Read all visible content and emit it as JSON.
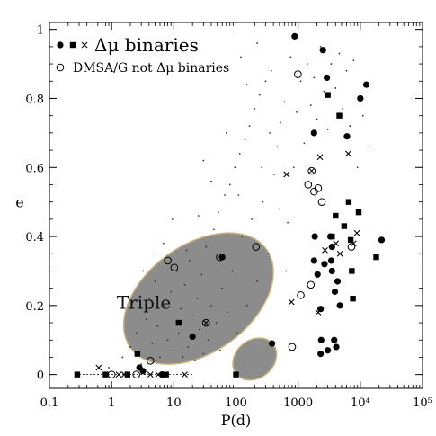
{
  "chart_data": {
    "type": "scatter",
    "x_scale": "log",
    "xlim": [
      0.1,
      100000
    ],
    "ylim": [
      -0.04,
      1.02
    ],
    "xlabel": "P(d)",
    "ylabel": "e",
    "x_ticks": [
      {
        "value": 0.1,
        "label": "0.1"
      },
      {
        "value": 1,
        "label": "1"
      },
      {
        "value": 10,
        "label": "10"
      },
      {
        "value": 100,
        "label": "100"
      },
      {
        "value": 1000,
        "label": "1000"
      },
      {
        "value": 10000,
        "label": "10⁴"
      },
      {
        "value": 100000,
        "label": "10⁵"
      }
    ],
    "y_ticks": [
      {
        "value": 0,
        "label": "0"
      },
      {
        "value": 0.2,
        "label": "0.2"
      },
      {
        "value": 0.4,
        "label": "0.4"
      },
      {
        "value": 0.6,
        "label": "0.6"
      },
      {
        "value": 0.8,
        "label": "0.8"
      },
      {
        "value": 1,
        "label": "1"
      }
    ],
    "legend": {
      "placement": "top-left",
      "entries": [
        {
          "markers": [
            "filled-circle",
            "filled-square",
            "cross"
          ],
          "label": "Δμ binaries"
        },
        {
          "markers": [
            "open-circle"
          ],
          "label": "DMSA/G not Δμ binaries"
        }
      ]
    },
    "annotations": [
      {
        "text": "Triple",
        "x": 3.3,
        "y": 0.19
      }
    ],
    "series": [
      {
        "marker": "filled-circle",
        "color": "#000000",
        "points": [
          [
            2.8,
            0.02
          ],
          [
            3.2,
            0.01
          ],
          [
            6.5,
            0.0
          ],
          [
            20,
            0.11
          ],
          [
            60,
            0.34
          ],
          [
            380,
            0.09
          ],
          [
            880,
            0.98
          ],
          [
            1800,
            0.7
          ],
          [
            1850,
            0.4
          ],
          [
            1800,
            0.33
          ],
          [
            2050,
            0.29
          ],
          [
            2300,
            0.19
          ],
          [
            2350,
            0.1
          ],
          [
            2300,
            0.06
          ],
          [
            2500,
            0.94
          ],
          [
            2650,
            0.32
          ],
          [
            2900,
            0.86
          ],
          [
            3000,
            0.07
          ],
          [
            3300,
            0.4
          ],
          [
            3500,
            0.37
          ],
          [
            3400,
            0.33
          ],
          [
            3500,
            0.3
          ],
          [
            3800,
            0.1
          ],
          [
            3900,
            0.24
          ],
          [
            4100,
            0.08
          ],
          [
            4300,
            0.27
          ],
          [
            4700,
            0.2
          ],
          [
            6100,
            0.69
          ],
          [
            10000,
            0.8
          ],
          [
            12500,
            0.84
          ],
          [
            22000,
            0.39
          ]
        ]
      },
      {
        "marker": "filled-square",
        "color": "#000000",
        "points": [
          [
            0.28,
            0.0
          ],
          [
            0.8,
            0.0
          ],
          [
            1.8,
            0.0
          ],
          [
            2.6,
            0.06
          ],
          [
            7.5,
            0.0
          ],
          [
            12,
            0.15
          ],
          [
            100,
            0.0
          ],
          [
            3000,
            0.81
          ],
          [
            3500,
            0.4
          ],
          [
            4000,
            0.46
          ],
          [
            4600,
            0.75
          ],
          [
            5500,
            0.43
          ],
          [
            6500,
            0.5
          ],
          [
            7000,
            0.39
          ],
          [
            7300,
            0.3
          ],
          [
            7600,
            0.22
          ],
          [
            9400,
            0.47
          ],
          [
            18000,
            0.34
          ]
        ]
      },
      {
        "marker": "cross",
        "color": "#000000",
        "points": [
          [
            0.62,
            0.02
          ],
          [
            1.3,
            0.0
          ],
          [
            1.6,
            0.0
          ],
          [
            4.2,
            0.0
          ],
          [
            5.6,
            0.0
          ],
          [
            15,
            0.0
          ],
          [
            650,
            0.58
          ],
          [
            780,
            0.21
          ],
          [
            2100,
            0.18
          ],
          [
            2250,
            0.63
          ],
          [
            2700,
            0.36
          ],
          [
            4050,
            0.38
          ],
          [
            4700,
            0.35
          ],
          [
            6400,
            0.64
          ],
          [
            7800,
            0.38
          ],
          [
            8800,
            0.41
          ]
        ]
      },
      {
        "marker": "open-circle",
        "color": "#000000",
        "points": [
          [
            1.0,
            0.0
          ],
          [
            2.5,
            0.0
          ],
          [
            4.2,
            0.04
          ],
          [
            8.0,
            0.33
          ],
          [
            10.2,
            0.31
          ],
          [
            55,
            0.34
          ],
          [
            210,
            0.37
          ],
          [
            800,
            0.08
          ],
          [
            990,
            0.87
          ],
          [
            1100,
            0.23
          ],
          [
            1450,
            0.55
          ],
          [
            1600,
            0.26
          ],
          [
            1800,
            0.53
          ],
          [
            2100,
            0.54
          ],
          [
            2400,
            0.5
          ],
          [
            7200,
            0.37
          ]
        ]
      },
      {
        "marker": "open-circle-cross",
        "color": "#000000",
        "points": [
          [
            33,
            0.15
          ],
          [
            1650,
            0.59
          ]
        ]
      }
    ],
    "background_dots": [
      [
        0.9,
        0.02
      ],
      [
        1.5,
        0.05
      ],
      [
        2.0,
        0.08
      ],
      [
        2.5,
        0.12
      ],
      [
        3.0,
        0.03
      ],
      [
        3.6,
        0.16
      ],
      [
        4.0,
        0.22
      ],
      [
        4.5,
        0.09
      ],
      [
        5.0,
        0.27
      ],
      [
        5.5,
        0.14
      ],
      [
        6.0,
        0.05
      ],
      [
        7.0,
        0.2
      ],
      [
        8.0,
        0.1
      ],
      [
        9.0,
        0.24
      ],
      [
        10,
        0.07
      ],
      [
        11,
        0.3
      ],
      [
        12,
        0.12
      ],
      [
        13,
        0.19
      ],
      [
        14,
        0.05
      ],
      [
        15,
        0.26
      ],
      [
        17,
        0.08
      ],
      [
        18,
        0.33
      ],
      [
        20,
        0.17
      ],
      [
        22,
        0.04
      ],
      [
        24,
        0.22
      ],
      [
        26,
        0.13
      ],
      [
        28,
        0.29
      ],
      [
        30,
        0.06
      ],
      [
        33,
        0.37
      ],
      [
        36,
        0.1
      ],
      [
        40,
        0.2
      ],
      [
        44,
        0.42
      ],
      [
        48,
        0.15
      ],
      [
        52,
        0.47
      ],
      [
        56,
        0.07
      ],
      [
        60,
        0.25
      ],
      [
        66,
        0.52
      ],
      [
        72,
        0.18
      ],
      [
        80,
        0.55
      ],
      [
        88,
        0.3
      ],
      [
        96,
        0.6
      ],
      [
        105,
        0.12
      ],
      [
        115,
        0.64
      ],
      [
        125,
        0.4
      ],
      [
        140,
        0.68
      ],
      [
        150,
        0.2
      ],
      [
        165,
        0.72
      ],
      [
        180,
        0.45
      ],
      [
        200,
        0.77
      ],
      [
        220,
        0.27
      ],
      [
        240,
        0.81
      ],
      [
        270,
        0.5
      ],
      [
        300,
        0.85
      ],
      [
        330,
        0.35
      ],
      [
        370,
        0.88
      ],
      [
        410,
        0.58
      ],
      [
        460,
        0.66
      ],
      [
        520,
        0.73
      ],
      [
        600,
        0.79
      ],
      [
        680,
        0.44
      ],
      [
        760,
        0.92
      ],
      [
        850,
        0.6
      ],
      [
        950,
        0.76
      ],
      [
        1100,
        0.85
      ],
      [
        1250,
        0.67
      ],
      [
        1400,
        0.9
      ],
      [
        1600,
        0.78
      ],
      [
        1800,
        0.86
      ],
      [
        2000,
        0.74
      ],
      [
        2300,
        0.95
      ],
      [
        2600,
        0.82
      ],
      [
        3000,
        0.71
      ],
      [
        3400,
        0.9
      ],
      [
        4000,
        0.83
      ],
      [
        4600,
        0.93
      ],
      [
        5200,
        0.77
      ],
      [
        6000,
        0.88
      ],
      [
        6800,
        0.72
      ],
      [
        7800,
        0.91
      ],
      [
        9000,
        0.6
      ],
      [
        11000,
        0.75
      ],
      [
        14000,
        0.66
      ],
      [
        25,
        0.46
      ],
      [
        16,
        0.36
      ],
      [
        40,
        0.56
      ],
      [
        9.5,
        0.45
      ],
      [
        6.8,
        0.38
      ],
      [
        30,
        0.62
      ],
      [
        70,
        0.7
      ],
      [
        150,
        0.84
      ],
      [
        110,
        0.52
      ],
      [
        260,
        0.6
      ],
      [
        350,
        0.7
      ],
      [
        500,
        0.48
      ],
      [
        640,
        0.3
      ],
      [
        3.2,
        0.3
      ],
      [
        2.2,
        0.21
      ],
      [
        5.2,
        0.35
      ],
      [
        120,
        0.92
      ],
      [
        220,
        0.96
      ]
    ],
    "shaded_regions": [
      {
        "fill": "#8c8c8c",
        "stroke": "#c9b37a",
        "center": [
          25,
          0.22
        ],
        "rx_decades": 1.35,
        "ry": 0.155,
        "rotation_deg": -36
      },
      {
        "fill": "#8c8c8c",
        "stroke": "#c9b37a",
        "center": [
          200,
          0.045
        ],
        "rx_decades": 0.38,
        "ry": 0.055,
        "rotation_deg": -40
      }
    ],
    "dashed_line": {
      "y": 0.0,
      "x_range": [
        0.3,
        20
      ]
    }
  }
}
